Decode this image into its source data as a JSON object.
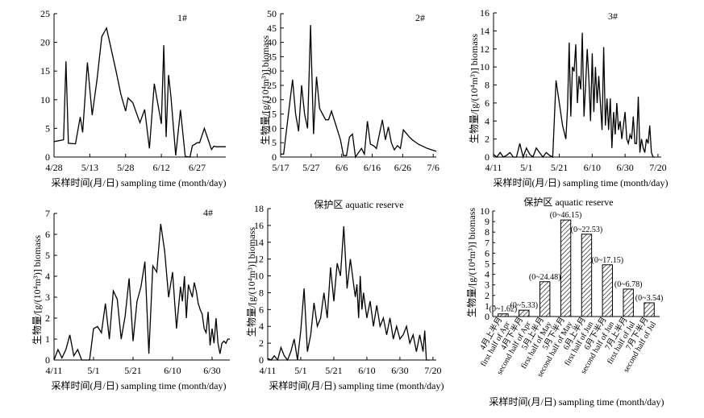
{
  "chart_data": [
    {
      "id": "station1",
      "type": "line",
      "title": "1#",
      "xlabel": "采样时间(月/日) sampling time (month/day)",
      "ylabel": "",
      "x_ticks": [
        "4/28",
        "5/13",
        "5/28",
        "6/12",
        "6/27"
      ],
      "x_range": [
        0,
        72
      ],
      "ylim": [
        0,
        25
      ],
      "y_ticks": [
        0,
        5,
        10,
        15,
        20,
        25
      ],
      "series": [
        {
          "x": [
            0,
            4,
            5,
            6,
            9,
            11,
            12,
            14,
            16,
            18,
            20,
            22,
            26,
            28,
            30,
            31,
            33,
            36,
            38,
            40,
            42,
            45,
            46,
            47,
            48,
            49,
            51,
            53,
            55,
            57,
            58,
            59,
            60,
            61,
            63,
            66,
            67,
            68,
            72
          ],
          "y": [
            2.7,
            3,
            16.7,
            2.4,
            2.3,
            7,
            4.3,
            16.5,
            7.3,
            13.5,
            21,
            22.5,
            15,
            11,
            8,
            10.3,
            9.5,
            6,
            8.3,
            1.5,
            12.8,
            5.8,
            19.5,
            3.5,
            14.3,
            10.5,
            0.3,
            8.2,
            0.1,
            0,
            2,
            2.2,
            2.5,
            2.5,
            5,
            1.3,
            1.9,
            1.8,
            1.8
          ]
        }
      ]
    },
    {
      "id": "station2",
      "type": "line",
      "title": "2#",
      "xlabel": "",
      "ylabel": "生物量/[g/(10⁴m³)] biomass",
      "x_ticks": [
        "5/17",
        "5/27",
        "6/6",
        "6/16",
        "6/26",
        "7/6"
      ],
      "x_range": [
        0,
        52
      ],
      "ylim": [
        0,
        50
      ],
      "y_ticks": [
        0,
        5,
        10,
        15,
        20,
        25,
        30,
        35,
        40,
        45,
        50
      ],
      "series": [
        {
          "x": [
            0,
            1,
            4,
            5,
            6,
            7,
            8,
            9,
            10,
            11,
            12,
            13,
            15,
            16,
            17,
            20,
            21,
            22,
            23,
            24,
            25,
            27,
            28,
            29,
            30,
            31,
            32,
            34,
            35,
            36,
            37,
            38,
            39,
            40,
            41,
            43,
            44,
            46,
            49,
            52
          ],
          "y": [
            1,
            1,
            27,
            15,
            9,
            25,
            15,
            10,
            46,
            8,
            28,
            17,
            13,
            13,
            16,
            6,
            0.5,
            0.5,
            7,
            8,
            0,
            3,
            1,
            12.5,
            4.5,
            4,
            3,
            13,
            6,
            10.5,
            5,
            2.5,
            4,
            3,
            9.5,
            7,
            6,
            4.5,
            3,
            2
          ]
        }
      ]
    },
    {
      "id": "station3",
      "type": "line",
      "title": "3#",
      "xlabel": "采样时间(月/日) sampling time (month/day)",
      "ylabel": "生物量/[g/(10⁴m³)] biomass",
      "x_ticks": [
        "4/11",
        "5/1",
        "5/21",
        "6/10",
        "6/30",
        "7/20"
      ],
      "x_range": [
        0,
        102
      ],
      "ylim": [
        0,
        16
      ],
      "y_ticks": [
        0,
        2,
        4,
        6,
        8,
        10,
        12,
        14,
        16
      ],
      "series": [
        {
          "x": [
            0,
            2,
            4,
            6,
            8,
            10,
            12,
            14,
            16,
            18,
            20,
            22,
            24,
            26,
            28,
            30,
            32,
            34,
            36,
            38,
            40,
            42,
            44,
            45,
            46,
            47,
            48,
            49,
            50,
            51,
            52,
            53,
            54,
            55,
            56,
            57,
            58,
            59,
            60,
            61,
            62,
            63,
            64,
            65,
            66,
            67,
            68,
            69,
            70,
            71,
            72,
            73,
            74,
            75,
            76,
            77,
            78,
            79,
            80,
            81,
            82,
            83,
            84,
            85,
            86,
            87,
            88,
            89,
            90,
            91,
            92,
            93,
            94,
            95,
            96,
            97,
            98
          ],
          "y": [
            0.3,
            0,
            0.5,
            0,
            0.2,
            0.5,
            0,
            0,
            1.5,
            0,
            1,
            0.3,
            0,
            1,
            0.5,
            0,
            0.5,
            0.2,
            0,
            8.5,
            6,
            3.5,
            2,
            5.5,
            12.7,
            4.5,
            10,
            9.5,
            12.5,
            6,
            9,
            7.5,
            13.8,
            4.5,
            8,
            12,
            8.5,
            4,
            11.5,
            5,
            10,
            6,
            9,
            6,
            3,
            12.2,
            3.5,
            6.5,
            3,
            6.5,
            1,
            5,
            2.5,
            6,
            3,
            4,
            2,
            3.5,
            5,
            2,
            1.5,
            2.5,
            2,
            4.5,
            1.5,
            1.5,
            6.7,
            0.5,
            2,
            1,
            0.5,
            2,
            1.5,
            3.5,
            0.5,
            0,
            0
          ]
        }
      ]
    },
    {
      "id": "station4",
      "type": "line",
      "title": "4#",
      "xlabel": "采样时间(月/日) sampling time (month/day)",
      "ylabel": "生物量/[g/(10⁴m³)] biomass",
      "x_ticks": [
        "4/11",
        "5/1",
        "5/21",
        "6/10",
        "6/30"
      ],
      "x_range": [
        0,
        89
      ],
      "ylim": [
        0,
        7
      ],
      "y_ticks": [
        0,
        1,
        2,
        3,
        4,
        5,
        6,
        7
      ],
      "series": [
        {
          "x": [
            0,
            2,
            4,
            6,
            8,
            10,
            12,
            14,
            16,
            18,
            20,
            22,
            24,
            26,
            28,
            30,
            32,
            34,
            36,
            38,
            40,
            42,
            44,
            46,
            48,
            50,
            52,
            54,
            56,
            58,
            60,
            62,
            64,
            65,
            66,
            67,
            68,
            69,
            70,
            71,
            72,
            73,
            74,
            75,
            76,
            77,
            78,
            79,
            80,
            81,
            82,
            83,
            84,
            85,
            86,
            87,
            88,
            89
          ],
          "y": [
            0,
            0.5,
            0.1,
            0.5,
            1.2,
            0.2,
            0.5,
            0,
            0,
            0,
            1.5,
            1.6,
            1.3,
            2.7,
            1,
            3.3,
            2.9,
            1,
            2.1,
            3.9,
            0.9,
            2.8,
            3.5,
            4.7,
            0.3,
            4.5,
            4.2,
            6.5,
            5.2,
            3,
            4.2,
            1.5,
            3.5,
            2.8,
            4,
            2,
            3.6,
            3.3,
            3,
            3.7,
            3.3,
            2.7,
            2.4,
            2.2,
            1.5,
            1.3,
            2.3,
            0.7,
            1.5,
            0.8,
            2,
            0.8,
            0.3,
            0.8,
            0.9,
            0.8,
            1,
            1
          ]
        }
      ]
    },
    {
      "id": "reserve_line",
      "type": "line",
      "title": "保护区 aquatic reserve",
      "xlabel": "采样时间(月/日) sampling time (month/day)",
      "ylabel": "生物量/[g/(10⁴m³)] biomass",
      "x_ticks": [
        "4/11",
        "5/1",
        "5/21",
        "6/10",
        "6/30",
        "7/20"
      ],
      "x_range": [
        0,
        102
      ],
      "ylim": [
        0,
        18
      ],
      "y_ticks": [
        0,
        2,
        4,
        6,
        8,
        10,
        12,
        14,
        16,
        18
      ],
      "series": [
        {
          "x": [
            0,
            2,
            4,
            6,
            8,
            10,
            12,
            14,
            16,
            18,
            20,
            22,
            24,
            26,
            28,
            30,
            32,
            34,
            36,
            38,
            40,
            42,
            44,
            46,
            48,
            50,
            52,
            53,
            54,
            55,
            56,
            57,
            58,
            60,
            62,
            64,
            66,
            68,
            70,
            72,
            74,
            76,
            78,
            80,
            82,
            84,
            86,
            88,
            90,
            92,
            94,
            95,
            96,
            98
          ],
          "y": [
            0.2,
            0,
            0.5,
            0,
            1.5,
            0.5,
            0,
            1,
            2.5,
            0,
            3.5,
            8.5,
            1,
            3,
            6.8,
            4,
            5,
            8,
            5,
            11,
            7,
            11.5,
            10,
            15.9,
            8.5,
            12,
            9,
            7.5,
            9,
            5,
            10,
            6,
            8,
            5,
            7,
            4,
            6.5,
            4,
            5,
            3,
            5,
            2.5,
            4,
            2.5,
            3,
            4,
            2,
            3,
            1,
            3,
            1,
            3.5,
            0,
            0
          ]
        }
      ]
    },
    {
      "id": "reserve_bar",
      "type": "bar",
      "title": "保护区 aquatic reserve",
      "xlabel": "采样时间(月/日) sampling time (month/day)",
      "ylabel": "生物量/[g/(10⁴m³)] biomass",
      "ylim": [
        0,
        10
      ],
      "y_ticks": [
        0,
        1,
        2,
        3,
        4,
        5,
        6,
        7,
        8,
        9,
        10
      ],
      "categories": [
        {
          "cn": "4月上半月",
          "en": "first half of Apr"
        },
        {
          "cn": "4月下半月",
          "en": "second half of Apr"
        },
        {
          "cn": "5月上半月",
          "en": "first half of May"
        },
        {
          "cn": "5月下半月",
          "en": "second half of May"
        },
        {
          "cn": "6月上半月",
          "en": "first half of Jun"
        },
        {
          "cn": "6月下半月",
          "en": "second half of Jun"
        },
        {
          "cn": "7月上半月",
          "en": "first half of Jul"
        },
        {
          "cn": "7月下半月",
          "en": "second half of Jul"
        }
      ],
      "values": [
        0.25,
        0.6,
        3.3,
        9.15,
        7.8,
        4.9,
        2.6,
        1.3
      ],
      "range_labels": [
        "(0~1.62)",
        "(0~5.33)",
        "(0~24.48)",
        "(0~46.15)",
        "(0~22.53)",
        "(0~17.15)",
        "(0~6.78)",
        "(0~3.54)"
      ]
    }
  ]
}
